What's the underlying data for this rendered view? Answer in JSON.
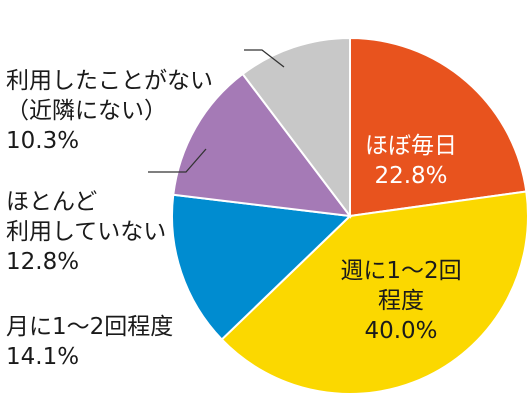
{
  "chart_data": {
    "type": "pie",
    "start": "top",
    "direction": "clockwise",
    "slices": [
      {
        "name": "ほぼ毎日",
        "label": "ほぼ毎日",
        "value": 22.8,
        "value_label": "22.8%",
        "color": "#E8531E",
        "text_color": "#ffffff"
      },
      {
        "name": "週に1〜2回程度",
        "label": "週に1〜2回\n程度",
        "value": 40.0,
        "value_label": "40.0%",
        "color": "#FBD800",
        "text_color": "#1a1a1a"
      },
      {
        "name": "月に1〜2回程度",
        "label": "月に1〜2回程度",
        "value": 14.1,
        "value_label": "14.1%",
        "color": "#008CD0",
        "text_color": "#1a1a1a"
      },
      {
        "name": "ほとんど利用していない",
        "label": "ほとんど\n利用していない",
        "value": 12.8,
        "value_label": "12.8%",
        "color": "#A57AB6",
        "text_color": "#1a1a1a"
      },
      {
        "name": "利用したことがない（近隣にない）",
        "label": "利用したことがない\n（近隣にない）",
        "value": 10.3,
        "value_label": "10.3%",
        "color": "#C8C8C8",
        "text_color": "#1a1a1a"
      }
    ]
  }
}
